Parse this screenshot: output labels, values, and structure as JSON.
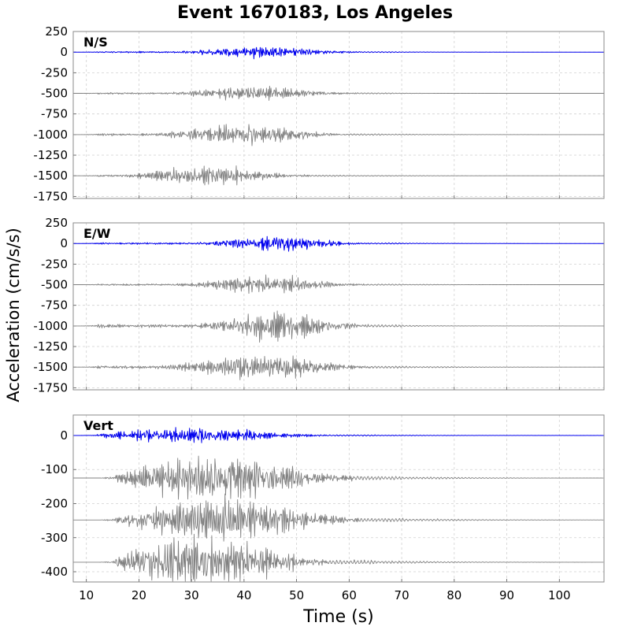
{
  "title": "Event 1670183, Los Angeles",
  "chart_data": {
    "type": "line",
    "title": "Event 1670183, Los Angeles",
    "xlabel": "Time (s)",
    "ylabel": "Acceleration (cm/s/s)",
    "xlim": [
      7.5,
      108.5
    ],
    "x_ticks": [
      "10",
      "20",
      "30",
      "40",
      "50",
      "60",
      "70",
      "80",
      "90",
      "100"
    ],
    "grid": true,
    "colors": {
      "primary": "#0000ee",
      "secondary": "#808080",
      "grid": "#d0d0d0"
    },
    "panels": [
      {
        "name": "N/S",
        "ylim": [
          -1775,
          250
        ],
        "y_ticks": [
          "250",
          "0",
          "-250",
          "-500",
          "-750",
          "-1000",
          "-1250",
          "-1500",
          "-1750"
        ],
        "traces": [
          {
            "offset": 0,
            "color": "blue",
            "start": 9,
            "peak_time": 43,
            "spread": 12,
            "amp": 90,
            "tail_end": 70
          },
          {
            "offset": -500,
            "color": "gray",
            "start": 9,
            "peak_time": 42,
            "spread": 12,
            "amp": 110,
            "tail_end": 68
          },
          {
            "offset": -1000,
            "color": "gray",
            "start": 9,
            "peak_time": 40,
            "spread": 12,
            "amp": 160,
            "tail_end": 70
          },
          {
            "offset": -1500,
            "color": "gray",
            "start": 9,
            "peak_time": 33,
            "spread": 12,
            "amp": 140,
            "tail_end": 68
          }
        ]
      },
      {
        "name": "E/W",
        "ylim": [
          -1775,
          250
        ],
        "y_ticks": [
          "250",
          "0",
          "-250",
          "-500",
          "-750",
          "-1000",
          "-1250",
          "-1500",
          "-1750"
        ],
        "traces": [
          {
            "offset": 0,
            "color": "blue",
            "start": 9,
            "peak_time": 46,
            "spread": 11,
            "amp": 120,
            "tail_end": 72
          },
          {
            "offset": -500,
            "color": "gray",
            "start": 9,
            "peak_time": 44,
            "spread": 12,
            "amp": 130,
            "tail_end": 75
          },
          {
            "offset": -1000,
            "color": "gray",
            "start": 9,
            "peak_time": 46,
            "spread": 11,
            "amp": 230,
            "tail_end": 70
          },
          {
            "offset": -1500,
            "color": "gray",
            "start": 9,
            "peak_time": 43,
            "spread": 13,
            "amp": 210,
            "tail_end": 78
          }
        ]
      },
      {
        "name": "Vert",
        "ylim": [
          -430,
          60
        ],
        "y_ticks": [
          "0",
          "-100",
          "-200",
          "-300",
          "-400"
        ],
        "traces": [
          {
            "offset": 0,
            "color": "blue",
            "start": 9,
            "peak_time": 30,
            "spread": 16,
            "amp": 30,
            "tail_end": 88
          },
          {
            "offset": -125,
            "color": "gray",
            "start": 12.5,
            "peak_time": 35,
            "spread": 16,
            "amp": 90,
            "tail_end": 100
          },
          {
            "offset": -248,
            "color": "gray",
            "start": 12.5,
            "peak_time": 36,
            "spread": 16,
            "amp": 85,
            "tail_end": 90
          },
          {
            "offset": -372,
            "color": "gray",
            "start": 12.5,
            "peak_time": 32,
            "spread": 15,
            "amp": 100,
            "tail_end": 98
          }
        ]
      }
    ]
  }
}
